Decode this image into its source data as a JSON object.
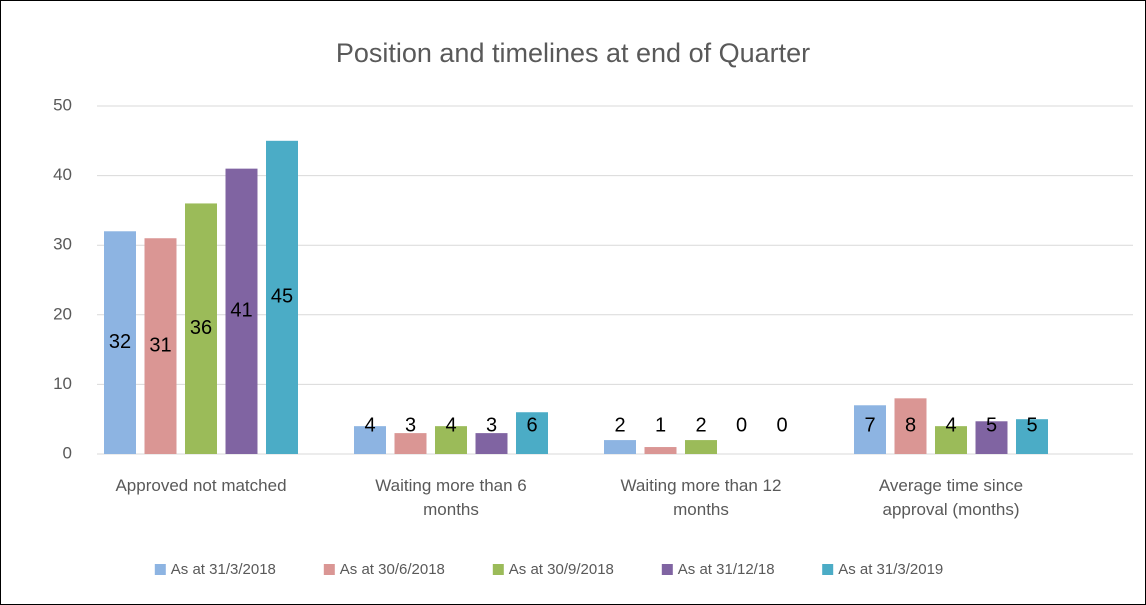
{
  "chart_data": {
    "type": "bar",
    "title": "Position and timelines at end of Quarter",
    "categories": [
      "Approved not matched",
      "Waiting more than 6 months",
      "Waiting more than 12 months",
      "Average time since approval (months)"
    ],
    "series": [
      {
        "name": "As at 31/3/2018",
        "color": "#8db4e2",
        "values": [
          32,
          4,
          2,
          7
        ]
      },
      {
        "name": "As at 30/6/2018",
        "color": "#da9694",
        "values": [
          31,
          3,
          1,
          8
        ]
      },
      {
        "name": "As at 30/9/2018",
        "color": "#9bbb59",
        "values": [
          36,
          4,
          2,
          4
        ]
      },
      {
        "name": "As at 31/12/18",
        "color": "#8064a2",
        "values": [
          41,
          3,
          0,
          4.7
        ],
        "value_labels": [
          "41",
          "3",
          "0",
          "5"
        ]
      },
      {
        "name": "As at 31/3/2019",
        "color": "#4bacc6",
        "values": [
          45,
          6,
          0,
          5
        ]
      }
    ],
    "ylim": [
      0,
      50
    ],
    "yticks": [
      0,
      10,
      20,
      30,
      40,
      50
    ],
    "grid": true,
    "legend": "bottom"
  }
}
